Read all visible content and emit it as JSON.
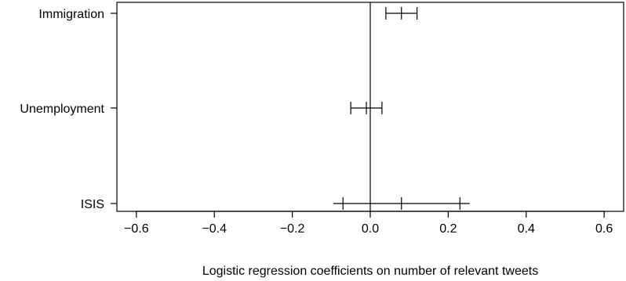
{
  "chart_data": {
    "type": "errorbar",
    "title": "",
    "xlabel": "Logistic regression coefficients on number of relevant tweets",
    "ylabel": "",
    "xlim": [
      -0.65,
      0.65
    ],
    "x_ticks": [
      -0.6,
      -0.4,
      -0.2,
      0.0,
      0.2,
      0.4,
      0.6
    ],
    "x_tick_labels": [
      "−0.6",
      "−0.4",
      "−0.2",
      "0.0",
      "0.2",
      "0.4",
      "0.6"
    ],
    "reference_line_x": 0.0,
    "grid": false,
    "categories": [
      "Immigration",
      "Unemployment",
      "ISIS"
    ],
    "estimates": [
      {
        "label": "Immigration",
        "estimate": 0.08,
        "inner_low": 0.04,
        "inner_high": 0.12,
        "outer_low": 0.04,
        "outer_high": 0.12
      },
      {
        "label": "Unemployment",
        "estimate": -0.01,
        "inner_low": -0.05,
        "inner_high": 0.03,
        "outer_low": -0.05,
        "outer_high": 0.03
      },
      {
        "label": "ISIS",
        "estimate": 0.08,
        "inner_low": -0.07,
        "inner_high": 0.23,
        "outer_low": -0.095,
        "outer_high": 0.255
      }
    ]
  }
}
